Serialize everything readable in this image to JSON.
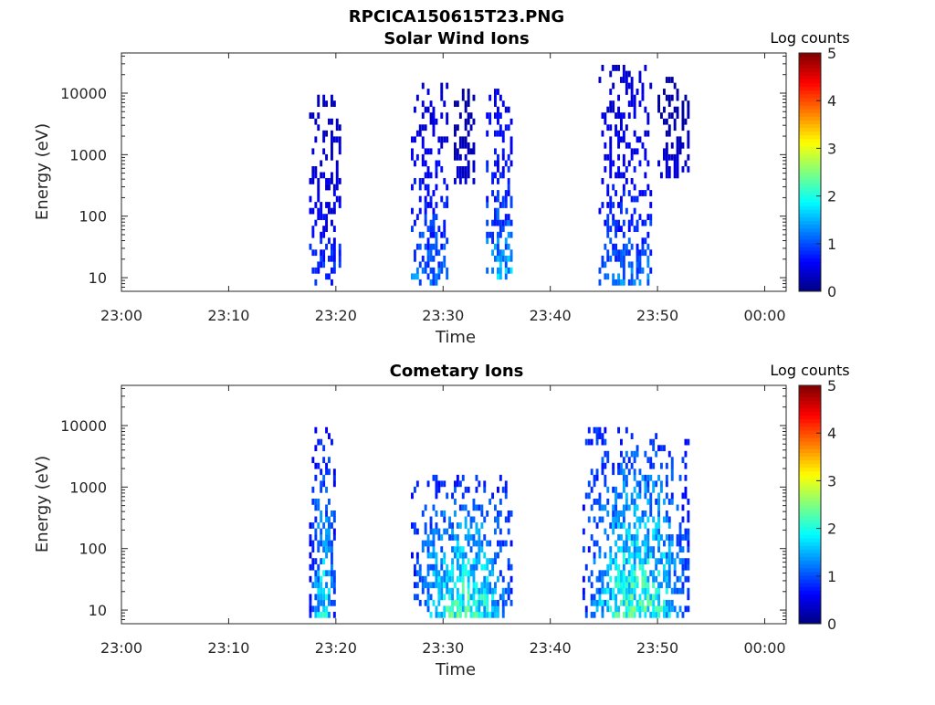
{
  "figure_title": "RPCICA150615T23.PNG",
  "colormap": [
    "#00007f",
    "#0000ff",
    "#007fff",
    "#00ffff",
    "#7fff7f",
    "#ffff00",
    "#ff7f00",
    "#ff0000",
    "#7f0000"
  ],
  "chart_data": [
    {
      "type": "heatmap",
      "title": "Solar Wind Ions",
      "xlabel": "Time",
      "ylabel": "Energy (eV)",
      "x_ticks": [
        "23:00",
        "23:10",
        "23:20",
        "23:30",
        "23:40",
        "23:50",
        "00:00"
      ],
      "y_ticks": [
        "10",
        "100",
        "1000",
        "10000"
      ],
      "yscale": "log",
      "xlim": [
        "23:00",
        "00:02"
      ],
      "ylim": [
        6,
        45000
      ],
      "colorbar": {
        "label": "Log counts",
        "range": [
          0,
          5
        ],
        "ticks": [
          "0",
          "1",
          "2",
          "3",
          "4",
          "5"
        ]
      },
      "bursts": [
        {
          "start": "23:17:30",
          "end": "23:20:30",
          "emin": 8,
          "emax": 9000,
          "peak": 1.2
        },
        {
          "start": "23:27:00",
          "end": "23:30:30",
          "emin": 8,
          "emax": 15000,
          "peak": 1.6
        },
        {
          "start": "23:31:00",
          "end": "23:33:00",
          "emin": 300,
          "emax": 15000,
          "peak": 0.6
        },
        {
          "start": "23:34:00",
          "end": "23:36:30",
          "emin": 10,
          "emax": 15000,
          "peak": 1.9
        },
        {
          "start": "23:44:30",
          "end": "23:49:30",
          "emin": 8,
          "emax": 30000,
          "peak": 1.5
        },
        {
          "start": "23:50:00",
          "end": "23:53:00",
          "emin": 400,
          "emax": 20000,
          "peak": 0.6
        }
      ]
    },
    {
      "type": "heatmap",
      "title": "Cometary Ions",
      "xlabel": "Time",
      "ylabel": "Energy (eV)",
      "x_ticks": [
        "23:00",
        "23:10",
        "23:20",
        "23:30",
        "23:40",
        "23:50",
        "00:00"
      ],
      "y_ticks": [
        "10",
        "100",
        "1000",
        "10000"
      ],
      "yscale": "log",
      "xlim": [
        "23:00",
        "00:02"
      ],
      "ylim": [
        6,
        45000
      ],
      "colorbar": {
        "label": "Log counts",
        "range": [
          0,
          5
        ],
        "ticks": [
          "0",
          "1",
          "2",
          "3",
          "4",
          "5"
        ]
      },
      "bursts": [
        {
          "start": "23:17:30",
          "end": "23:20:00",
          "emin": 8,
          "emax": 10000,
          "peak": 2.3
        },
        {
          "start": "23:27:00",
          "end": "23:36:30",
          "emin": 8,
          "emax": 1500,
          "peak": 2.8
        },
        {
          "start": "23:43:00",
          "end": "23:53:00",
          "emin": 8,
          "emax": 10000,
          "peak": 2.8
        }
      ]
    }
  ]
}
